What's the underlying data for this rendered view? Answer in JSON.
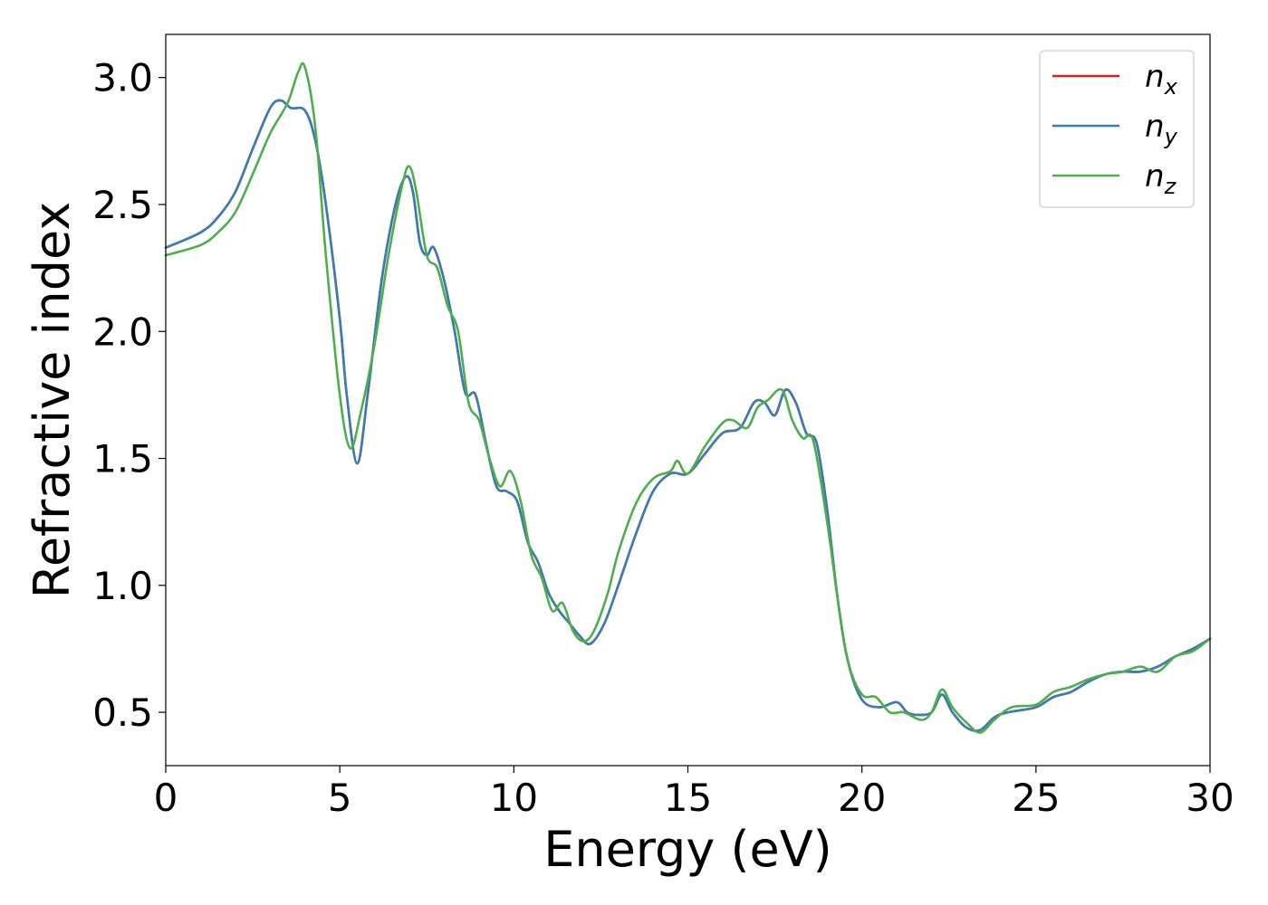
{
  "chart_data": {
    "type": "line",
    "title": "",
    "xlabel": "Energy (eV)",
    "ylabel": "Refractive index",
    "xlim": [
      0,
      30
    ],
    "ylim": [
      0.29,
      3.17
    ],
    "xticks": [
      0,
      5,
      10,
      15,
      20,
      25,
      30
    ],
    "xtick_labels": [
      "0",
      "5",
      "10",
      "15",
      "20",
      "25",
      "30"
    ],
    "yticks": [
      0.5,
      1.0,
      1.5,
      2.0,
      2.5,
      3.0
    ],
    "ytick_labels": [
      "0.5",
      "1.0",
      "1.5",
      "2.0",
      "2.5",
      "3.0"
    ],
    "grid": false,
    "legend_position": "top-right",
    "series": [
      {
        "name": "n",
        "subscript": "x",
        "color": "#e41a1c",
        "x": [
          0,
          1,
          1.5,
          2,
          2.5,
          3,
          3.3,
          3.6,
          4,
          4.3,
          4.6,
          5,
          5.2,
          5.5,
          5.8,
          6.2,
          6.6,
          6.9,
          7.1,
          7.3,
          7.5,
          7.7,
          8,
          8.3,
          8.6,
          8.9,
          9.2,
          9.5,
          9.8,
          10.1,
          10.4,
          10.7,
          11,
          11.3,
          11.6,
          11.9,
          12.2,
          12.6,
          13,
          13.5,
          14,
          14.5,
          15,
          15.5,
          16,
          16.5,
          16.9,
          17.2,
          17.5,
          17.8,
          18.1,
          18.4,
          18.7,
          19,
          19.3,
          19.6,
          20,
          20.5,
          21,
          21.3,
          21.6,
          22,
          22.3,
          22.6,
          23,
          23.4,
          23.8,
          24.2,
          25,
          25.5,
          26,
          26.5,
          27,
          27.5,
          28,
          28.5,
          29,
          29.5,
          30
        ],
        "values": [
          2.33,
          2.39,
          2.45,
          2.55,
          2.72,
          2.88,
          2.91,
          2.88,
          2.87,
          2.75,
          2.5,
          2.05,
          1.75,
          1.48,
          1.75,
          2.2,
          2.5,
          2.61,
          2.55,
          2.35,
          2.3,
          2.33,
          2.2,
          2.0,
          1.76,
          1.75,
          1.56,
          1.39,
          1.37,
          1.33,
          1.17,
          1.09,
          0.97,
          0.9,
          0.85,
          0.8,
          0.77,
          0.85,
          1.0,
          1.2,
          1.37,
          1.44,
          1.44,
          1.52,
          1.6,
          1.62,
          1.72,
          1.72,
          1.67,
          1.77,
          1.72,
          1.6,
          1.56,
          1.3,
          0.95,
          0.7,
          0.55,
          0.52,
          0.54,
          0.5,
          0.49,
          0.5,
          0.57,
          0.5,
          0.44,
          0.43,
          0.48,
          0.5,
          0.52,
          0.56,
          0.58,
          0.62,
          0.65,
          0.66,
          0.66,
          0.68,
          0.72,
          0.75,
          0.79
        ]
      },
      {
        "name": "n",
        "subscript": "y",
        "color": "#377eb8",
        "x": [
          0,
          1,
          1.5,
          2,
          2.5,
          3,
          3.3,
          3.6,
          4,
          4.3,
          4.6,
          5,
          5.2,
          5.5,
          5.8,
          6.2,
          6.6,
          6.9,
          7.1,
          7.3,
          7.5,
          7.7,
          8,
          8.3,
          8.6,
          8.9,
          9.2,
          9.5,
          9.8,
          10.1,
          10.4,
          10.7,
          11,
          11.3,
          11.6,
          11.9,
          12.2,
          12.6,
          13,
          13.5,
          14,
          14.5,
          15,
          15.5,
          16,
          16.5,
          16.9,
          17.2,
          17.5,
          17.8,
          18.1,
          18.4,
          18.7,
          19,
          19.3,
          19.6,
          20,
          20.5,
          21,
          21.3,
          21.6,
          22,
          22.3,
          22.6,
          23,
          23.4,
          23.8,
          24.2,
          25,
          25.5,
          26,
          26.5,
          27,
          27.5,
          28,
          28.5,
          29,
          29.5,
          30
        ],
        "values": [
          2.33,
          2.39,
          2.45,
          2.55,
          2.72,
          2.88,
          2.91,
          2.88,
          2.87,
          2.75,
          2.5,
          2.05,
          1.75,
          1.48,
          1.75,
          2.2,
          2.5,
          2.61,
          2.55,
          2.35,
          2.3,
          2.33,
          2.2,
          2.0,
          1.76,
          1.75,
          1.56,
          1.39,
          1.37,
          1.33,
          1.17,
          1.09,
          0.97,
          0.9,
          0.85,
          0.8,
          0.77,
          0.85,
          1.0,
          1.2,
          1.37,
          1.44,
          1.44,
          1.52,
          1.6,
          1.62,
          1.72,
          1.72,
          1.67,
          1.77,
          1.72,
          1.6,
          1.56,
          1.3,
          0.95,
          0.7,
          0.55,
          0.52,
          0.54,
          0.5,
          0.49,
          0.5,
          0.57,
          0.5,
          0.44,
          0.43,
          0.48,
          0.5,
          0.52,
          0.56,
          0.58,
          0.62,
          0.65,
          0.66,
          0.66,
          0.68,
          0.72,
          0.75,
          0.79
        ]
      },
      {
        "name": "n",
        "subscript": "z",
        "color": "#4daf4a",
        "x": [
          0,
          1,
          1.5,
          2,
          2.5,
          3,
          3.5,
          3.8,
          4.0,
          4.3,
          4.6,
          5,
          5.3,
          5.6,
          6,
          6.4,
          6.8,
          7.0,
          7.2,
          7.5,
          7.8,
          8.1,
          8.4,
          8.7,
          9.0,
          9.3,
          9.6,
          9.9,
          10.2,
          10.5,
          10.8,
          11.1,
          11.4,
          11.7,
          12.0,
          12.3,
          12.7,
          13,
          13.5,
          14,
          14.5,
          14.7,
          15,
          15.5,
          16,
          16.3,
          16.7,
          17,
          17.3,
          17.7,
          18,
          18.3,
          18.6,
          19,
          19.3,
          19.6,
          20,
          20.4,
          20.8,
          21.2,
          21.7,
          22,
          22.3,
          22.6,
          23,
          23.4,
          23.8,
          24.3,
          25,
          25.5,
          26,
          26.5,
          27,
          27.5,
          28,
          28.5,
          29,
          29.5,
          30
        ],
        "values": [
          2.3,
          2.34,
          2.39,
          2.47,
          2.62,
          2.78,
          2.9,
          3.02,
          3.04,
          2.8,
          2.3,
          1.75,
          1.54,
          1.68,
          1.95,
          2.3,
          2.58,
          2.65,
          2.55,
          2.3,
          2.25,
          2.1,
          2.0,
          1.72,
          1.65,
          1.5,
          1.39,
          1.45,
          1.33,
          1.12,
          1.03,
          0.9,
          0.93,
          0.82,
          0.78,
          0.82,
          0.97,
          1.13,
          1.32,
          1.42,
          1.45,
          1.49,
          1.44,
          1.55,
          1.64,
          1.65,
          1.62,
          1.7,
          1.73,
          1.77,
          1.65,
          1.58,
          1.57,
          1.25,
          0.95,
          0.7,
          0.57,
          0.56,
          0.5,
          0.5,
          0.47,
          0.5,
          0.59,
          0.52,
          0.46,
          0.42,
          0.47,
          0.52,
          0.53,
          0.58,
          0.6,
          0.63,
          0.65,
          0.66,
          0.68,
          0.66,
          0.72,
          0.74,
          0.79
        ]
      }
    ]
  }
}
